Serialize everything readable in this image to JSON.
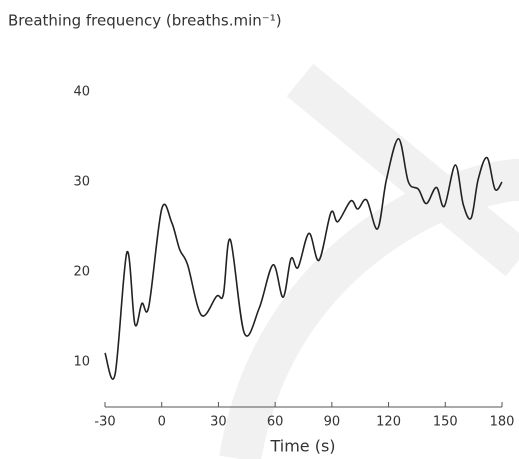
{
  "chart_data": {
    "type": "line",
    "title": "Breathing frequency (breaths.min⁻¹)",
    "xlabel": "Time (s)",
    "x": [
      -30,
      -24.7,
      -18.4,
      -14.2,
      -10.5,
      -6.8,
      0,
      5.3,
      9.5,
      13.7,
      21,
      29,
      32.6,
      36.3,
      43.7,
      51.6,
      58.9,
      64.2,
      68.4,
      72.1,
      77.9,
      83.2,
      89.5,
      93.2,
      100,
      103.7,
      108.4,
      114.2,
      118.9,
      125.3,
      130.5,
      135.8,
      140,
      145.3,
      149.5,
      155.3,
      159.5,
      163.7,
      167.4,
      172.1,
      176.3,
      180
    ],
    "series": [
      {
        "name": "Breathing frequency",
        "color": "#222222",
        "values": [
          11,
          8.6,
          22.2,
          14.2,
          16.5,
          16.2,
          27,
          25.5,
          22.5,
          20.8,
          15.2,
          17.3,
          17.5,
          23.6,
          13.2,
          16,
          20.8,
          17.2,
          21.5,
          20.5,
          24.3,
          21.3,
          26.6,
          25.6,
          27.9,
          27,
          28,
          24.8,
          30.3,
          34.8,
          30,
          29.2,
          27.6,
          29.4,
          27.3,
          31.9,
          27.5,
          26,
          30.3,
          32.7,
          29.2,
          30
        ]
      }
    ],
    "xlim": [
      -30,
      180
    ],
    "xticks": [
      -30,
      0,
      30,
      60,
      90,
      120,
      150,
      180
    ],
    "ylim": [
      5,
      45
    ],
    "yticks": [
      10,
      20,
      30,
      40
    ],
    "grid": false
  }
}
